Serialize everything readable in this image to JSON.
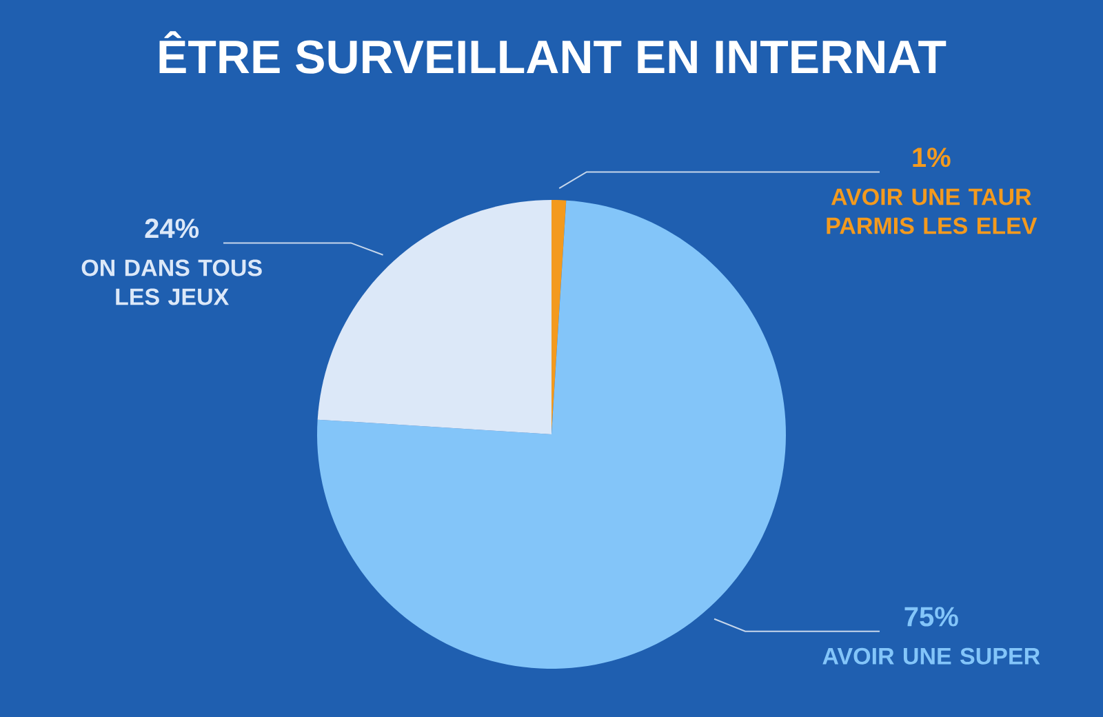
{
  "chart_data": {
    "type": "pie",
    "title": "ÊTRE SURVEILLANT EN INTERNAT",
    "categories": [
      "AVOIR UNE TAUR PARMIS LES ELEV",
      "AVOIR UNE SUPER",
      "ON DANS TOUS LES JEUX"
    ],
    "values": [
      1,
      75,
      24
    ],
    "value_labels": [
      "1%",
      "75%",
      "24%"
    ],
    "colors": [
      "#f39a1e",
      "#83c5f9",
      "#dce8f8"
    ]
  }
}
